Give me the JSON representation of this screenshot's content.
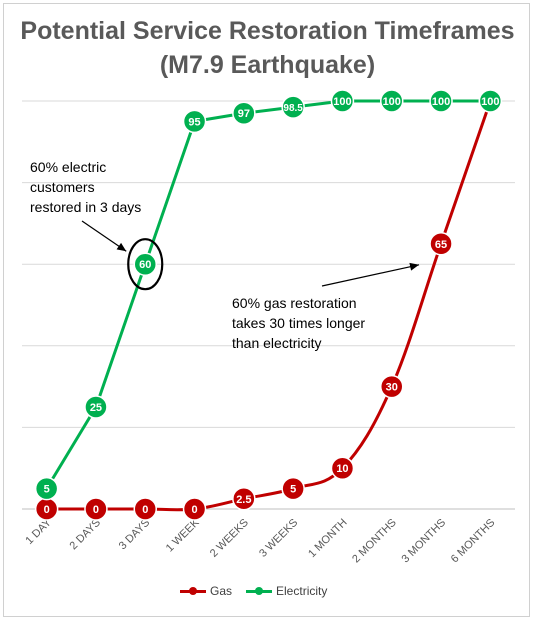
{
  "chart_data": {
    "type": "line",
    "title": "Potential Service Restoration Timeframes (M7.9 Earthquake)",
    "categories": [
      "1 DAY",
      "2 DAYS",
      "3 DAYS",
      "1 WEEK",
      "2 WEEKS",
      "3 WEEKS",
      "1 MONTH",
      "2 MONTHS",
      "3 MONTHS",
      "6 MONTHS"
    ],
    "ylim": [
      0,
      100
    ],
    "grid": true,
    "legend_position": "bottom",
    "series": [
      {
        "name": "Gas",
        "color": "#c00000",
        "values": [
          0,
          0,
          0,
          0,
          2.5,
          5,
          10,
          30,
          65,
          100
        ],
        "labels": [
          "0",
          "0",
          "0",
          "0",
          "2.5",
          "5",
          "10",
          "30",
          "65",
          "100"
        ],
        "smooth": true
      },
      {
        "name": "Electricity",
        "color": "#00b050",
        "values": [
          5,
          25,
          60,
          95,
          97,
          98.5,
          100,
          100,
          100,
          100
        ],
        "labels": [
          "5",
          "25",
          "60",
          "95",
          "97",
          "98.5",
          "100",
          "100",
          "100",
          "100"
        ],
        "smooth": false
      }
    ],
    "annotations": [
      {
        "text": "60% electric customers restored in 3 days",
        "lines": [
          "60% electric",
          "customers",
          "restored in 3 days"
        ]
      },
      {
        "text": "60% gas restoration takes 30 times longer than electricity",
        "lines": [
          "60% gas restoration",
          "takes 30 times longer",
          "than electricity"
        ]
      }
    ]
  }
}
